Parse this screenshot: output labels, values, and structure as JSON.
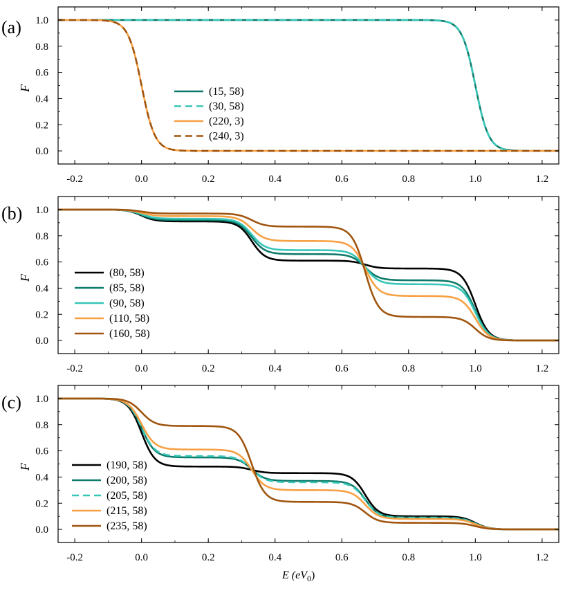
{
  "chart_data": [
    {
      "type": "line",
      "panel_label": "(a)",
      "ylabel": "F",
      "xlim": [
        -0.25,
        1.25
      ],
      "ylim": [
        -0.1,
        1.1
      ],
      "xticks": [
        -0.2,
        0.0,
        0.2,
        0.4,
        0.6,
        0.8,
        1.0,
        1.2
      ],
      "yticks": [
        0.0,
        0.2,
        0.4,
        0.6,
        0.8,
        1.0
      ],
      "legend_position": "center",
      "series": [
        {
          "name": "(15, 58)",
          "color": "#0e7a6a",
          "dash": "solid",
          "steps": [
            [
              1.0,
              1.0
            ]
          ]
        },
        {
          "name": "(30, 58)",
          "color": "#37c6b8",
          "dash": "dashed",
          "steps": [
            [
              1.0,
              1.0
            ]
          ]
        },
        {
          "name": "(220, 3)",
          "color": "#f7a044",
          "dash": "solid",
          "steps": [
            [
              0.0,
              1.0
            ]
          ]
        },
        {
          "name": "(240, 3)",
          "color": "#a0550f",
          "dash": "dashed",
          "steps": [
            [
              0.0,
              1.0
            ]
          ]
        }
      ]
    },
    {
      "type": "line",
      "panel_label": "(b)",
      "ylabel": "F",
      "xlim": [
        -0.25,
        1.25
      ],
      "ylim": [
        -0.1,
        1.1
      ],
      "xticks": [
        -0.2,
        0.0,
        0.2,
        0.4,
        0.6,
        0.8,
        1.0,
        1.2
      ],
      "yticks": [
        0.0,
        0.2,
        0.4,
        0.6,
        0.8,
        1.0
      ],
      "legend_position": "center-left",
      "series": [
        {
          "name": "(80, 58)",
          "color": "#000000",
          "dash": "solid",
          "steps": [
            [
              0.0,
              0.09
            ],
            [
              0.33,
              0.3
            ],
            [
              0.67,
              0.06
            ],
            [
              1.0,
              0.55
            ]
          ]
        },
        {
          "name": "(85, 58)",
          "color": "#0e7a6a",
          "dash": "solid",
          "steps": [
            [
              0.0,
              0.08
            ],
            [
              0.33,
              0.26
            ],
            [
              0.67,
              0.2
            ],
            [
              1.0,
              0.46
            ]
          ]
        },
        {
          "name": "(90, 58)",
          "color": "#37c6b8",
          "dash": "solid",
          "steps": [
            [
              0.0,
              0.07
            ],
            [
              0.33,
              0.24
            ],
            [
              0.67,
              0.26
            ],
            [
              1.0,
              0.43
            ]
          ]
        },
        {
          "name": "(110, 58)",
          "color": "#f7a044",
          "dash": "solid",
          "steps": [
            [
              0.0,
              0.05
            ],
            [
              0.33,
              0.19
            ],
            [
              0.67,
              0.42
            ],
            [
              1.0,
              0.34
            ]
          ]
        },
        {
          "name": "(160, 58)",
          "color": "#a0550f",
          "dash": "solid",
          "steps": [
            [
              0.0,
              0.03
            ],
            [
              0.33,
              0.1
            ],
            [
              0.67,
              0.69
            ],
            [
              1.0,
              0.18
            ]
          ]
        }
      ]
    },
    {
      "type": "line",
      "panel_label": "(c)",
      "ylabel": "F",
      "xlabel": "E  (eV",
      "xlabel_sub": "0",
      "xlabel_close": ")",
      "xlim": [
        -0.25,
        1.25
      ],
      "ylim": [
        -0.1,
        1.1
      ],
      "xticks": [
        -0.2,
        0.0,
        0.2,
        0.4,
        0.6,
        0.8,
        1.0,
        1.2
      ],
      "yticks": [
        0.0,
        0.2,
        0.4,
        0.6,
        0.8,
        1.0
      ],
      "legend_position": "bottom-left",
      "series": [
        {
          "name": "(190, 58)",
          "color": "#000000",
          "dash": "solid",
          "steps": [
            [
              0.0,
              0.52
            ],
            [
              0.33,
              0.05
            ],
            [
              0.67,
              0.33
            ],
            [
              1.0,
              0.1
            ]
          ]
        },
        {
          "name": "(200, 58)",
          "color": "#0e7a6a",
          "dash": "solid",
          "steps": [
            [
              0.0,
              0.45
            ],
            [
              0.33,
              0.18
            ],
            [
              0.67,
              0.28
            ],
            [
              1.0,
              0.09
            ]
          ]
        },
        {
          "name": "(205, 58)",
          "color": "#37c6b8",
          "dash": "dashed",
          "steps": [
            [
              0.0,
              0.44
            ],
            [
              0.33,
              0.2
            ],
            [
              0.67,
              0.27
            ],
            [
              1.0,
              0.09
            ]
          ]
        },
        {
          "name": "(215, 58)",
          "color": "#f7a044",
          "dash": "solid",
          "steps": [
            [
              0.0,
              0.39
            ],
            [
              0.33,
              0.31
            ],
            [
              0.67,
              0.22
            ],
            [
              1.0,
              0.08
            ]
          ]
        },
        {
          "name": "(235, 58)",
          "color": "#a0550f",
          "dash": "solid",
          "steps": [
            [
              0.0,
              0.21
            ],
            [
              0.33,
              0.58
            ],
            [
              0.67,
              0.16
            ],
            [
              1.0,
              0.05
            ]
          ]
        }
      ]
    }
  ]
}
